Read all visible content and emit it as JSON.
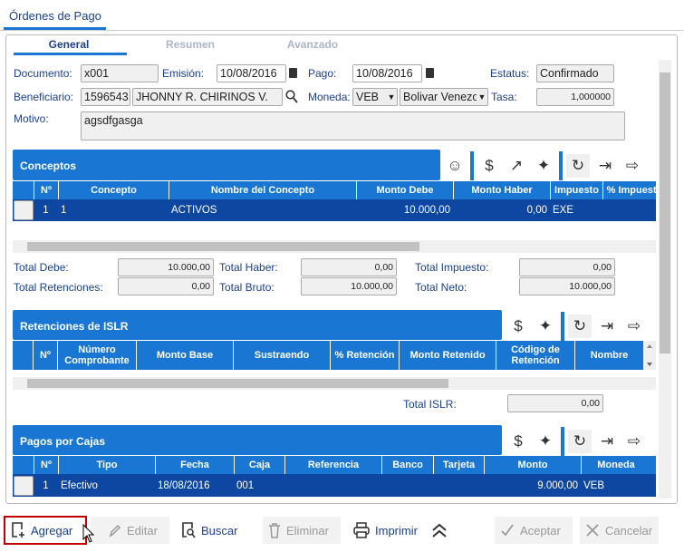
{
  "window": {
    "title": "Órdenes de Pago"
  },
  "tabs": [
    {
      "label": "General"
    },
    {
      "label": "Resumen"
    },
    {
      "label": "Avanzado"
    }
  ],
  "form": {
    "documento": {
      "label": "Documento:",
      "value": "x001"
    },
    "emision": {
      "label": "Emisión:",
      "value": "10/08/2016"
    },
    "pago": {
      "label": "Pago:",
      "value": "10/08/2016"
    },
    "estatus": {
      "label": "Estatus:",
      "value": "Confirmado"
    },
    "beneficiario": {
      "label": "Beneficiario:",
      "code": "1596543",
      "name": "JHONNY R. CHIRINOS V."
    },
    "moneda": {
      "label": "Moneda:",
      "code": "VEB",
      "name": "Bolivar Venezolano"
    },
    "tasa": {
      "label": "Tasa:",
      "value": "1,000000"
    },
    "motivo": {
      "label": "Motivo:",
      "value": "agsdfgasga"
    }
  },
  "conceptos": {
    "title": "Conceptos",
    "columns": [
      "Nº",
      "Concepto",
      "Nombre del Concepto",
      "Monto Debe",
      "Monto Haber",
      "Impuesto",
      "% Impuesto"
    ],
    "rows": [
      [
        "1",
        "1",
        "ACTIVOS",
        "10.000,00",
        "0,00",
        "EXE",
        ""
      ]
    ]
  },
  "totals": {
    "debe": {
      "label": "Total Debe:",
      "value": "10.000,00"
    },
    "haber": {
      "label": "Total Haber:",
      "value": "0,00"
    },
    "impuesto": {
      "label": "Total Impuesto:",
      "value": "0,00"
    },
    "retenciones": {
      "label": "Total Retenciones:",
      "value": "0,00"
    },
    "bruto": {
      "label": "Total Bruto:",
      "value": "10.000,00"
    },
    "neto": {
      "label": "Total Neto:",
      "value": "10.000,00"
    }
  },
  "islr": {
    "title": "Retenciones de ISLR",
    "columns": [
      "Nº",
      "Número Comprobante",
      "Monto Base",
      "Sustraendo",
      "% Retención",
      "Monto Retenido",
      "Código de Retención",
      "Nombre"
    ],
    "total": {
      "label": "Total ISLR:",
      "value": "0,00"
    }
  },
  "cajas": {
    "title": "Pagos por Cajas",
    "columns": [
      "Nº",
      "Tipo",
      "Fecha",
      "Caja",
      "Referencia",
      "Banco",
      "Tarjeta",
      "Monto",
      "Moneda"
    ],
    "rows": [
      [
        "1",
        "Efectivo",
        "18/08/2016",
        "001",
        "",
        "",
        "",
        "9.000,00",
        "VEB"
      ]
    ]
  },
  "buttons": {
    "agregar": "Agregar",
    "editar": "Editar",
    "buscar": "Buscar",
    "eliminar": "Eliminar",
    "imprimir": "Imprimir",
    "aceptar": "Aceptar",
    "cancelar": "Cancelar"
  },
  "colors": {
    "accent": "#1976d2",
    "row_selected": "#0d47a1",
    "label": "#1a3f8f",
    "highlight": "#c00000"
  }
}
